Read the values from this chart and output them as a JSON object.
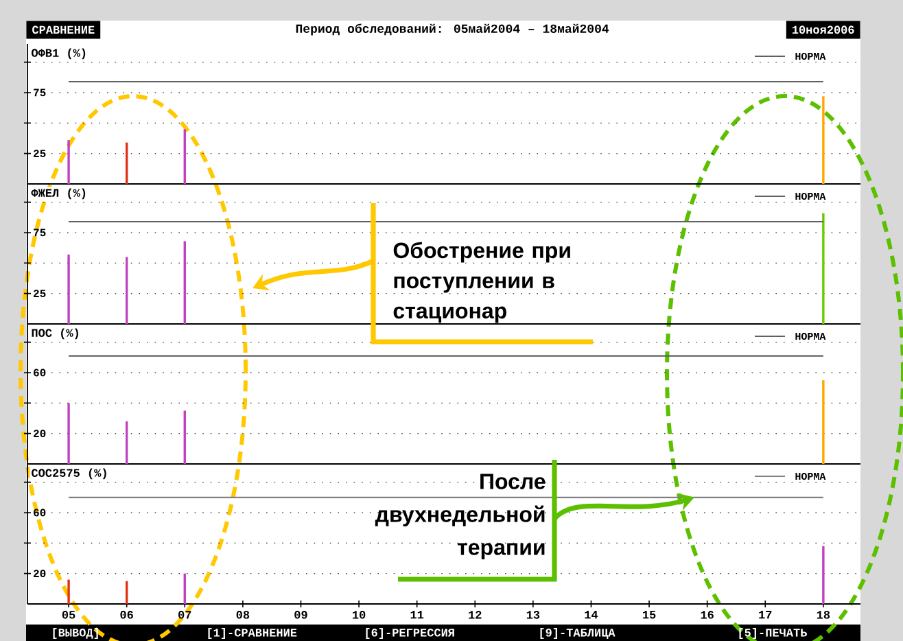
{
  "chart_data": [
    {
      "type": "bar",
      "title": "Период обследований: 05май2004 – 18май2004",
      "ylabel": "ОФВ1 (%)",
      "categories": [
        "05",
        "06",
        "07",
        "08",
        "09",
        "10",
        "11",
        "12",
        "13",
        "14",
        "15",
        "16",
        "17",
        "18"
      ],
      "values": [
        36,
        34,
        45,
        null,
        null,
        null,
        null,
        null,
        null,
        null,
        null,
        null,
        null,
        72
      ],
      "colors": [
        "#c040c0",
        "#e03010",
        "#c040c0",
        null,
        null,
        null,
        null,
        null,
        null,
        null,
        null,
        null,
        null,
        "#ffa500"
      ],
      "ylim": [
        0,
        115
      ],
      "yticks": [
        {
          "value": 25,
          "label": "25"
        },
        {
          "value": 50,
          "label": null
        },
        {
          "value": 75,
          "label": "75"
        },
        {
          "value": 100,
          "label": null
        }
      ],
      "grid": "y",
      "tick_labels": "y",
      "ref_lines": [
        {
          "axis": "y",
          "value": 84,
          "label": "НОРМА",
          "color": "#606060"
        }
      ],
      "annotations": [
        "СРАВНЕНИЕ",
        "10ноя2006"
      ]
    },
    {
      "type": "bar",
      "ylabel": "ФЖЕЛ (%)",
      "categories": [
        "05",
        "06",
        "07",
        "08",
        "09",
        "10",
        "11",
        "12",
        "13",
        "14",
        "15",
        "16",
        "17",
        "18"
      ],
      "values": [
        57,
        55,
        68,
        null,
        null,
        null,
        null,
        null,
        null,
        null,
        null,
        null,
        null,
        91
      ],
      "colors": [
        "#c040c0",
        "#c040c0",
        "#c040c0",
        null,
        null,
        null,
        null,
        null,
        null,
        null,
        null,
        null,
        null,
        "#66cc00"
      ],
      "ylim": [
        0,
        115
      ],
      "yticks": [
        {
          "value": 25,
          "label": "25"
        },
        {
          "value": 50,
          "label": null
        },
        {
          "value": 75,
          "label": "75"
        },
        {
          "value": 100,
          "label": null
        }
      ],
      "grid": "y",
      "tick_labels": "y",
      "ref_lines": [
        {
          "axis": "y",
          "value": 84,
          "label": "НОРМА",
          "color": "#606060"
        }
      ],
      "annotations": [
        "Обострение при поступлении в стационар"
      ]
    },
    {
      "type": "bar",
      "ylabel": "ПОС (%)",
      "categories": [
        "05",
        "06",
        "07",
        "08",
        "09",
        "10",
        "11",
        "12",
        "13",
        "14",
        "15",
        "16",
        "17",
        "18"
      ],
      "values": [
        40,
        28,
        35,
        null,
        null,
        null,
        null,
        null,
        null,
        null,
        null,
        null,
        null,
        55
      ],
      "colors": [
        "#c040c0",
        "#c040c0",
        "#c040c0",
        null,
        null,
        null,
        null,
        null,
        null,
        null,
        null,
        null,
        null,
        "#ffa500"
      ],
      "ylim": [
        0,
        92
      ],
      "yticks": [
        {
          "value": 20,
          "label": "20"
        },
        {
          "value": 40,
          "label": null
        },
        {
          "value": 60,
          "label": "60"
        },
        {
          "value": 80,
          "label": null
        }
      ],
      "grid": "y",
      "tick_labels": "y",
      "ref_lines": [
        {
          "axis": "y",
          "value": 71,
          "label": "НОРМА",
          "color": "#606060"
        }
      ]
    },
    {
      "type": "bar",
      "ylabel": "СОС2575 (%)",
      "categories": [
        "05",
        "06",
        "07",
        "08",
        "09",
        "10",
        "11",
        "12",
        "13",
        "14",
        "15",
        "16",
        "17",
        "18"
      ],
      "values": [
        16,
        15,
        20,
        null,
        null,
        null,
        null,
        null,
        null,
        null,
        null,
        null,
        null,
        38
      ],
      "colors": [
        "#e03010",
        "#e03010",
        "#c040c0",
        null,
        null,
        null,
        null,
        null,
        null,
        null,
        null,
        null,
        null,
        "#c040c0"
      ],
      "ylim": [
        0,
        92
      ],
      "yticks": [
        {
          "value": 20,
          "label": "20"
        },
        {
          "value": 40,
          "label": null
        },
        {
          "value": 60,
          "label": "60"
        },
        {
          "value": 80,
          "label": null
        }
      ],
      "grid": "y",
      "ref_lines": [
        {
          "axis": "y",
          "value": 70,
          "label": "НОРМА",
          "color": "#808080"
        }
      ],
      "annotations": [
        {
          "text": "После двухнедельной терапии",
          "y": 70
        },
        "[ВЫВОД]",
        "[1]-СРАВНЕНИЕ",
        "[6]-РЕГРЕССИЯ",
        "[9]-ТАБЛИЦА",
        "[5]-ПЕЧАТЬ"
      ]
    }
  ]
}
